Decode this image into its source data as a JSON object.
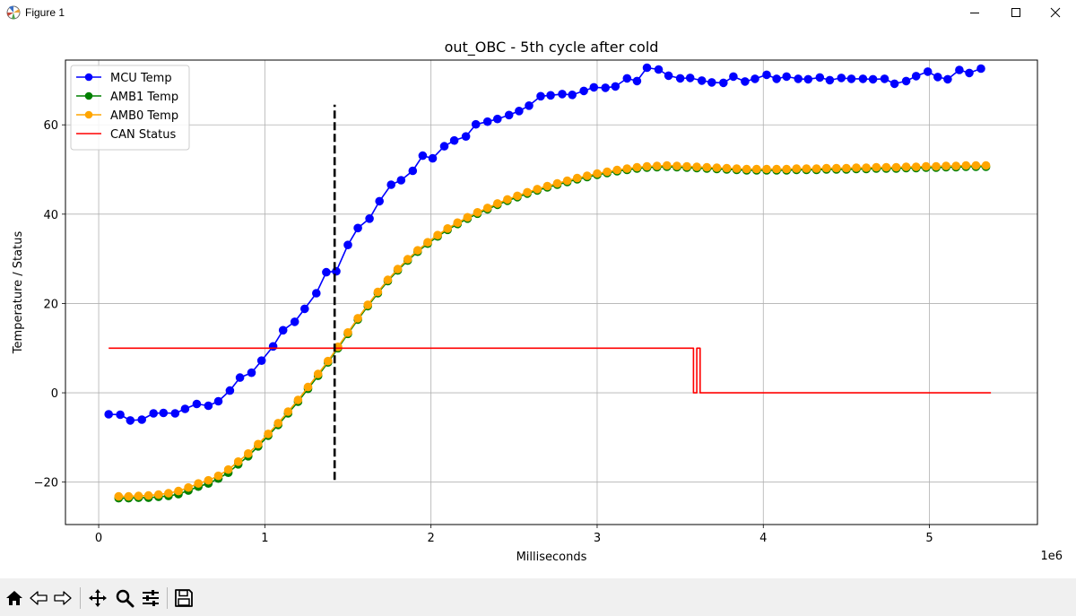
{
  "window": {
    "title": "Figure 1"
  },
  "chart_data": {
    "type": "line",
    "title": "out_OBC - 5th cycle after cold",
    "xlabel": "Milliseconds",
    "ylabel": "Temperature / Status",
    "x_offset_text": "1e6",
    "xlim": [
      -200000,
      5650000
    ],
    "ylim": [
      -29.5,
      74.5
    ],
    "xticks": [
      0,
      1000000,
      2000000,
      3000000,
      4000000,
      5000000
    ],
    "xtick_labels": [
      "0",
      "1",
      "2",
      "3",
      "4",
      "5"
    ],
    "yticks": [
      -20,
      0,
      20,
      40,
      60
    ],
    "ytick_labels": [
      "−20",
      "0",
      "20",
      "40",
      "60"
    ],
    "grid": true,
    "legend_position": "upper-left",
    "vline": {
      "x": 1420000,
      "y": [
        -19.5,
        64.5
      ],
      "color": "#000000",
      "style": "dashed"
    },
    "series": [
      {
        "name": "MCU Temp",
        "color": "#0000ff",
        "marker": "o",
        "x": [
          60000,
          130000,
          190000,
          260000,
          330000,
          390000,
          460000,
          520000,
          590000,
          660000,
          720000,
          790000,
          850000,
          920000,
          980000,
          1050000,
          1110000,
          1180000,
          1240000,
          1310000,
          1370000,
          1430000,
          1500000,
          1560000,
          1630000,
          1690000,
          1760000,
          1820000,
          1890000,
          1950000,
          2010000,
          2080000,
          2140000,
          2210000,
          2270000,
          2340000,
          2400000,
          2470000,
          2530000,
          2590000,
          2660000,
          2720000,
          2790000,
          2850000,
          2920000,
          2980000,
          3050000,
          3110000,
          3180000,
          3240000,
          3300000,
          3370000,
          3430000,
          3500000,
          3560000,
          3630000,
          3690000,
          3760000,
          3820000,
          3890000,
          3950000,
          4020000,
          4080000,
          4140000,
          4210000,
          4270000,
          4340000,
          4400000,
          4470000,
          4530000,
          4600000,
          4660000,
          4730000,
          4790000,
          4860000,
          4920000,
          4990000,
          5050000,
          5110000,
          5180000,
          5240000,
          5310000
        ],
        "y": [
          -4.8,
          -4.9,
          -6.2,
          -6.0,
          -4.6,
          -4.5,
          -4.6,
          -3.6,
          -2.5,
          -2.9,
          -1.9,
          0.5,
          3.4,
          4.5,
          7.2,
          10.4,
          14.0,
          15.9,
          18.8,
          22.3,
          27.0,
          27.2,
          33.1,
          36.9,
          39.0,
          42.9,
          46.6,
          47.6,
          49.7,
          53.1,
          52.5,
          55.2,
          56.5,
          57.4,
          60.1,
          60.7,
          61.3,
          62.2,
          63.1,
          64.3,
          66.4,
          66.6,
          66.9,
          66.7,
          67.6,
          68.4,
          68.3,
          68.6,
          70.4,
          69.8,
          72.8,
          72.4,
          71.0,
          70.4,
          70.5,
          69.9,
          69.5,
          69.4,
          70.8,
          69.7,
          70.3,
          71.2,
          70.3,
          70.8,
          70.3,
          70.2,
          70.6,
          70.0,
          70.5,
          70.3,
          70.3,
          70.2,
          70.3,
          69.2,
          69.8,
          70.9,
          71.9,
          70.7,
          70.2,
          72.3,
          71.6,
          72.6
        ]
      },
      {
        "name": "AMB1 Temp",
        "color": "#008000",
        "marker": "o",
        "x": [
          120000,
          180000,
          240000,
          300000,
          360000,
          420000,
          480000,
          540000,
          600000,
          660000,
          720000,
          780000,
          840000,
          900000,
          960000,
          1020000,
          1080000,
          1140000,
          1200000,
          1260000,
          1320000,
          1380000,
          1440000,
          1500000,
          1560000,
          1620000,
          1680000,
          1740000,
          1800000,
          1860000,
          1920000,
          1980000,
          2040000,
          2100000,
          2160000,
          2220000,
          2280000,
          2340000,
          2400000,
          2460000,
          2520000,
          2580000,
          2640000,
          2700000,
          2760000,
          2820000,
          2880000,
          2940000,
          3000000,
          3060000,
          3120000,
          3180000,
          3240000,
          3300000,
          3360000,
          3420000,
          3480000,
          3540000,
          3600000,
          3660000,
          3720000,
          3780000,
          3840000,
          3900000,
          3960000,
          4020000,
          4080000,
          4140000,
          4200000,
          4260000,
          4320000,
          4380000,
          4440000,
          4500000,
          4560000,
          4620000,
          4680000,
          4740000,
          4800000,
          4860000,
          4920000,
          4980000,
          5040000,
          5100000,
          5160000,
          5220000,
          5280000,
          5340000
        ],
        "y": [
          -23.6,
          -23.6,
          -23.5,
          -23.5,
          -23.3,
          -23.1,
          -22.7,
          -21.9,
          -21.0,
          -20.3,
          -19.2,
          -17.9,
          -16.0,
          -14.2,
          -12.0,
          -9.6,
          -7.2,
          -4.6,
          -2.0,
          0.9,
          3.8,
          6.8,
          10.0,
          13.2,
          16.4,
          19.4,
          22.3,
          25.0,
          27.4,
          29.6,
          31.6,
          33.4,
          35.0,
          36.5,
          37.8,
          39.0,
          40.1,
          41.1,
          42.1,
          43.0,
          43.8,
          44.6,
          45.3,
          46.0,
          46.6,
          47.2,
          47.8,
          48.3,
          48.8,
          49.2,
          49.6,
          49.9,
          50.2,
          50.4,
          50.5,
          50.6,
          50.5,
          50.4,
          50.3,
          50.2,
          50.1,
          50.0,
          49.9,
          49.8,
          49.8,
          49.8,
          49.8,
          49.8,
          49.9,
          49.9,
          49.9,
          50.0,
          50.0,
          50.0,
          50.1,
          50.1,
          50.2,
          50.2,
          50.2,
          50.3,
          50.3,
          50.4,
          50.4,
          50.5,
          50.5,
          50.6,
          50.6,
          50.6
        ]
      },
      {
        "name": "AMB0 Temp",
        "color": "#ffa500",
        "marker": "o",
        "x": [
          120000,
          180000,
          240000,
          300000,
          360000,
          420000,
          480000,
          540000,
          600000,
          660000,
          720000,
          780000,
          840000,
          900000,
          960000,
          1020000,
          1080000,
          1140000,
          1200000,
          1260000,
          1320000,
          1380000,
          1440000,
          1500000,
          1560000,
          1620000,
          1680000,
          1740000,
          1800000,
          1860000,
          1920000,
          1980000,
          2040000,
          2100000,
          2160000,
          2220000,
          2280000,
          2340000,
          2400000,
          2460000,
          2520000,
          2580000,
          2640000,
          2700000,
          2760000,
          2820000,
          2880000,
          2940000,
          3000000,
          3060000,
          3120000,
          3180000,
          3240000,
          3300000,
          3360000,
          3420000,
          3480000,
          3540000,
          3600000,
          3660000,
          3720000,
          3780000,
          3840000,
          3900000,
          3960000,
          4020000,
          4080000,
          4140000,
          4200000,
          4260000,
          4320000,
          4380000,
          4440000,
          4500000,
          4560000,
          4620000,
          4680000,
          4740000,
          4800000,
          4860000,
          4920000,
          4980000,
          5040000,
          5100000,
          5160000,
          5220000,
          5280000,
          5340000
        ],
        "y": [
          -23.2,
          -23.2,
          -23.1,
          -23.0,
          -22.8,
          -22.5,
          -22.0,
          -21.2,
          -20.3,
          -19.6,
          -18.6,
          -17.2,
          -15.4,
          -13.6,
          -11.5,
          -9.2,
          -6.8,
          -4.2,
          -1.6,
          1.3,
          4.2,
          7.1,
          10.3,
          13.5,
          16.7,
          19.7,
          22.6,
          25.3,
          27.7,
          29.9,
          31.9,
          33.7,
          35.3,
          36.8,
          38.1,
          39.3,
          40.4,
          41.4,
          42.4,
          43.3,
          44.1,
          44.9,
          45.6,
          46.3,
          46.9,
          47.5,
          48.1,
          48.6,
          49.1,
          49.5,
          49.9,
          50.2,
          50.5,
          50.7,
          50.8,
          50.9,
          50.8,
          50.7,
          50.6,
          50.5,
          50.4,
          50.3,
          50.2,
          50.1,
          50.1,
          50.1,
          50.1,
          50.1,
          50.2,
          50.2,
          50.2,
          50.3,
          50.3,
          50.3,
          50.4,
          50.4,
          50.5,
          50.5,
          50.5,
          50.6,
          50.6,
          50.7,
          50.7,
          50.8,
          50.8,
          50.9,
          50.9,
          50.9
        ]
      },
      {
        "name": "CAN Status",
        "color": "#ff0000",
        "marker": "",
        "x": [
          60000,
          3580000,
          3580000,
          3600000,
          3600000,
          3620000,
          3620000,
          5370000
        ],
        "y": [
          10,
          10,
          0,
          0,
          10,
          10,
          0,
          0
        ]
      }
    ]
  },
  "toolbar": {
    "buttons": [
      "home-icon",
      "back-icon",
      "forward-icon",
      "pan-icon",
      "zoom-icon",
      "configure-subplots-icon",
      "save-icon"
    ]
  }
}
